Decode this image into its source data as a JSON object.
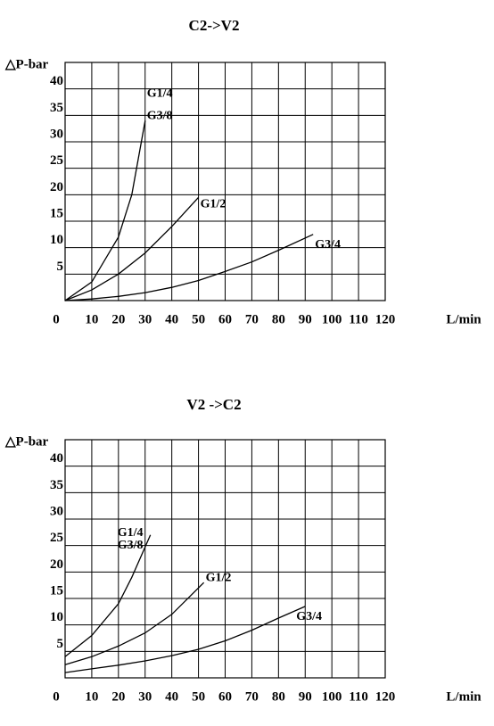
{
  "chart_data": [
    {
      "type": "line",
      "title": "C2->V2",
      "y_label": "△P-bar",
      "x_label": "L/min",
      "xlim": [
        0,
        120
      ],
      "ylim": [
        0,
        45
      ],
      "xticks": [
        0,
        10,
        20,
        30,
        40,
        50,
        60,
        70,
        80,
        90,
        100,
        110,
        120
      ],
      "yticks": [
        5,
        10,
        15,
        20,
        25,
        30,
        35,
        40
      ],
      "grid": true,
      "series": [
        {
          "names": [
            "G1/4",
            "G3/8"
          ],
          "color": "#000000",
          "x": [
            0,
            10,
            20,
            25,
            30
          ],
          "values": [
            0,
            3.5,
            12,
            20,
            34
          ]
        },
        {
          "names": [
            "G1/2"
          ],
          "color": "#000000",
          "x": [
            0,
            10,
            20,
            30,
            40,
            50
          ],
          "values": [
            0,
            2,
            5,
            9,
            14,
            19.5
          ]
        },
        {
          "names": [
            "G3/4"
          ],
          "color": "#000000",
          "x": [
            0,
            10,
            20,
            30,
            40,
            50,
            60,
            70,
            80,
            93
          ],
          "values": [
            0,
            0.3,
            0.8,
            1.5,
            2.5,
            3.8,
            5.5,
            7.3,
            9.5,
            12.5
          ]
        }
      ]
    },
    {
      "type": "line",
      "title": "V2 ->C2",
      "y_label": "△P-bar",
      "x_label": "L/min",
      "xlim": [
        0,
        120
      ],
      "ylim": [
        0,
        45
      ],
      "xticks": [
        0,
        10,
        20,
        30,
        40,
        50,
        60,
        70,
        80,
        90,
        100,
        110,
        120
      ],
      "yticks": [
        5,
        10,
        15,
        20,
        25,
        30,
        35,
        40
      ],
      "grid": true,
      "series": [
        {
          "names": [
            "G1/4",
            "G3/8"
          ],
          "color": "#000000",
          "x": [
            0,
            10,
            20,
            25,
            32
          ],
          "values": [
            4,
            8,
            14,
            19,
            27
          ]
        },
        {
          "names": [
            "G1/2"
          ],
          "color": "#000000",
          "x": [
            0,
            10,
            20,
            30,
            40,
            52
          ],
          "values": [
            2.5,
            4,
            6,
            8.5,
            12,
            18
          ]
        },
        {
          "names": [
            "G3/4"
          ],
          "color": "#000000",
          "x": [
            0,
            10,
            20,
            30,
            40,
            50,
            60,
            70,
            80,
            90
          ],
          "values": [
            1,
            1.7,
            2.4,
            3.2,
            4.2,
            5.4,
            7,
            9,
            11.3,
            13.5
          ]
        }
      ]
    }
  ]
}
